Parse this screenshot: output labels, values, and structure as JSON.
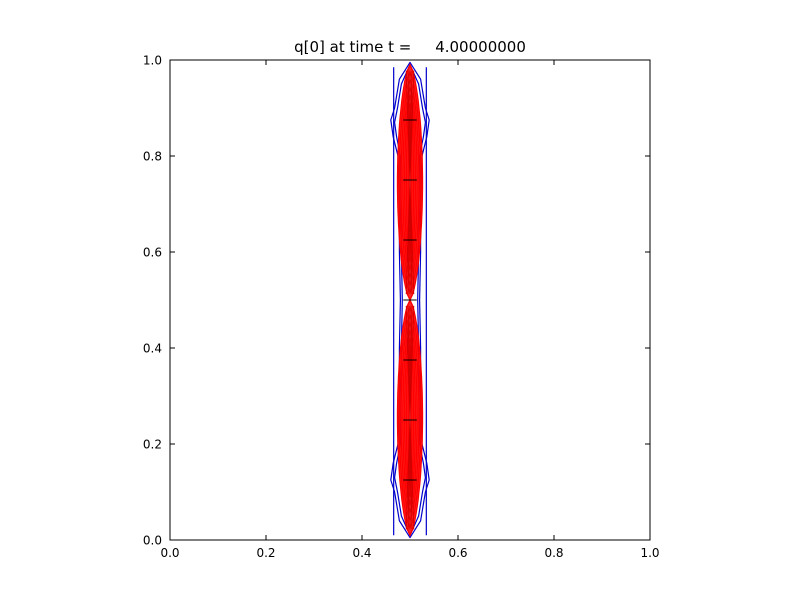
{
  "chart_data": {
    "type": "contour",
    "title": "q[0] at time t =     4.00000000",
    "xlabel": "",
    "ylabel": "",
    "xlim": [
      0.0,
      1.0
    ],
    "ylim": [
      0.0,
      1.0
    ],
    "x_ticks": [
      "0.0",
      "0.2",
      "0.4",
      "0.6",
      "0.8",
      "1.0"
    ],
    "y_ticks": [
      "0.0",
      "0.2",
      "0.4",
      "0.6",
      "0.8",
      "1.0"
    ],
    "grid": false,
    "colors": {
      "outer_contour": "#0000cc",
      "inner_contour": "#ff0000",
      "patch_lines": "#000000"
    },
    "outer_contours": [
      {
        "name": "outer-contour-1",
        "points": [
          [
            0.5,
            0.995
          ],
          [
            0.478,
            0.96
          ],
          [
            0.468,
            0.9
          ],
          [
            0.46,
            0.875
          ],
          [
            0.465,
            0.84
          ],
          [
            0.475,
            0.8
          ],
          [
            0.478,
            0.7
          ],
          [
            0.478,
            0.6
          ],
          [
            0.48,
            0.5
          ],
          [
            0.478,
            0.4
          ],
          [
            0.478,
            0.3
          ],
          [
            0.475,
            0.2
          ],
          [
            0.465,
            0.16
          ],
          [
            0.46,
            0.125
          ],
          [
            0.468,
            0.1
          ],
          [
            0.478,
            0.04
          ],
          [
            0.5,
            0.005
          ],
          [
            0.522,
            0.04
          ],
          [
            0.532,
            0.1
          ],
          [
            0.54,
            0.125
          ],
          [
            0.535,
            0.16
          ],
          [
            0.525,
            0.2
          ],
          [
            0.522,
            0.3
          ],
          [
            0.522,
            0.4
          ],
          [
            0.52,
            0.5
          ],
          [
            0.522,
            0.6
          ],
          [
            0.522,
            0.7
          ],
          [
            0.525,
            0.8
          ],
          [
            0.535,
            0.84
          ],
          [
            0.54,
            0.875
          ],
          [
            0.532,
            0.9
          ],
          [
            0.522,
            0.96
          ]
        ]
      },
      {
        "name": "outer-contour-2",
        "points": [
          [
            0.5,
            0.99
          ],
          [
            0.482,
            0.95
          ],
          [
            0.474,
            0.9
          ],
          [
            0.468,
            0.87
          ],
          [
            0.472,
            0.84
          ],
          [
            0.48,
            0.8
          ],
          [
            0.482,
            0.6
          ],
          [
            0.484,
            0.5
          ],
          [
            0.482,
            0.4
          ],
          [
            0.48,
            0.2
          ],
          [
            0.472,
            0.16
          ],
          [
            0.468,
            0.13
          ],
          [
            0.474,
            0.1
          ],
          [
            0.482,
            0.05
          ],
          [
            0.5,
            0.01
          ],
          [
            0.518,
            0.05
          ],
          [
            0.526,
            0.1
          ],
          [
            0.532,
            0.13
          ],
          [
            0.528,
            0.16
          ],
          [
            0.52,
            0.2
          ],
          [
            0.518,
            0.4
          ],
          [
            0.516,
            0.5
          ],
          [
            0.518,
            0.6
          ],
          [
            0.52,
            0.8
          ],
          [
            0.528,
            0.84
          ],
          [
            0.532,
            0.87
          ],
          [
            0.526,
            0.9
          ],
          [
            0.518,
            0.95
          ]
        ]
      }
    ],
    "outer_vertical_lines": [
      {
        "x": 0.466,
        "y0": 0.01,
        "y1": 0.985
      },
      {
        "x": 0.534,
        "y0": 0.01,
        "y1": 0.985
      }
    ],
    "inner_blobs": [
      {
        "name": "upper-blob",
        "center_y": 0.745,
        "half_height": 0.245,
        "max_halfwidth": 0.026
      },
      {
        "name": "lower-blob",
        "center_y": 0.255,
        "half_height": 0.245,
        "max_halfwidth": 0.026
      }
    ],
    "inner_contour_levels": 7,
    "patch_tick_y": [
      0.125,
      0.25,
      0.375,
      0.5,
      0.625,
      0.75,
      0.875
    ],
    "patch_tick_halfwidth": 0.014
  }
}
